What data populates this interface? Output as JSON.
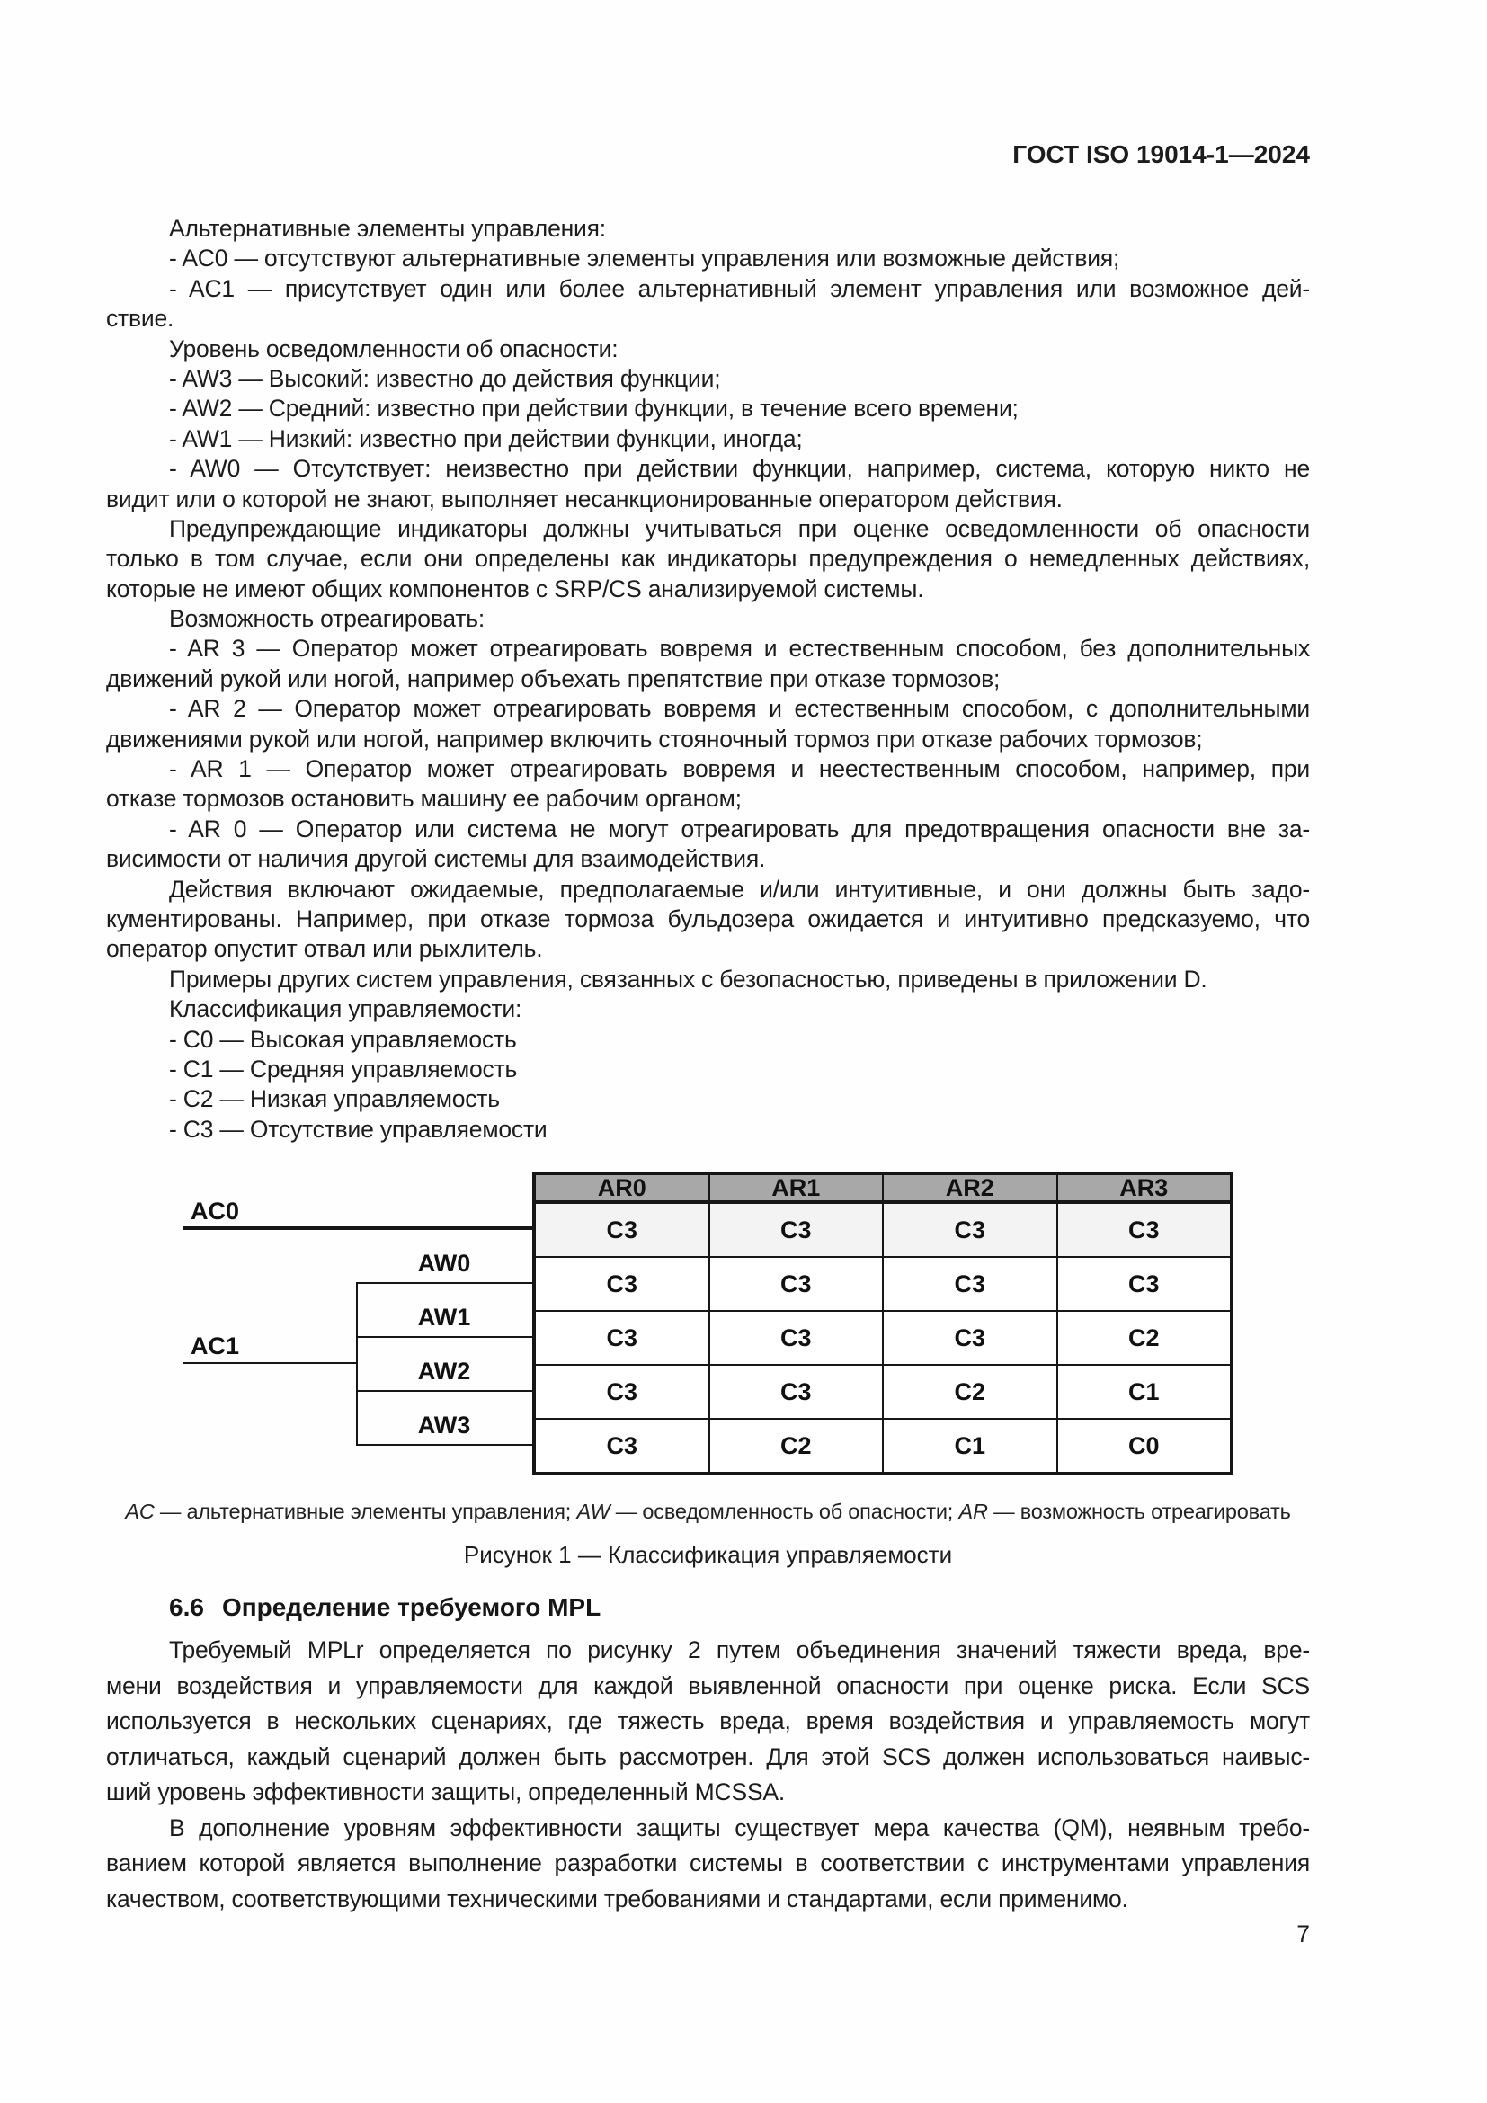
{
  "page": {
    "header_title": "ГОСТ ISO 19014-1—2024",
    "number": "7"
  },
  "body_top": {
    "lines": [
      {
        "text": "Альтернативные элементы управления:",
        "indent": true
      },
      {
        "text": "- AC0 — отсутствуют альтернативные элементы управления или возможные действия;",
        "indent": true
      },
      {
        "text": "- AC1 — присутствует один или более альтернативный элемент управления или возможное дей-",
        "indent": true,
        "justify": true
      },
      {
        "text": "ствие."
      },
      {
        "text": "Уровень осведомленности об опасности:",
        "indent": true
      },
      {
        "text": "- AW3 — Высокий: известно до действия функции;",
        "indent": true
      },
      {
        "text": "- AW2 — Средний: известно при действии функции, в течение всего времени;",
        "indent": true
      },
      {
        "text": "- AW1 — Низкий: известно при действии функции, иногда;",
        "indent": true
      },
      {
        "text": "- AW0 — Отсутствует: неизвестно при действии функции, например, система, которую никто не",
        "indent": true,
        "justify": true
      },
      {
        "text": "видит или о которой не знают, выполняет несанкционированные оператором действия."
      },
      {
        "text": "Предупреждающие индикаторы должны учитываться при оценке осведомленности об опасности",
        "indent": true,
        "justify": true
      },
      {
        "text": "только в том случае, если они определены как индикаторы предупреждения о немедленных действиях,",
        "justify": true
      },
      {
        "text": "которые не имеют общих компонентов с SRP/CS анализируемой системы."
      },
      {
        "text": "Возможность отреагировать:",
        "indent": true
      },
      {
        "text": "- AR 3 — Оператор может отреагировать вовремя и естественным способом, без дополнительных",
        "indent": true,
        "justify": true
      },
      {
        "text": "движений рукой или ногой, например объехать препятствие при отказе тормозов;"
      },
      {
        "text": "- AR 2 — Оператор может отреагировать вовремя и естественным способом, с дополнительными",
        "indent": true,
        "justify": true
      },
      {
        "text": "движениями рукой или ногой, например включить стояночный тормоз при отказе рабочих тормозов;"
      },
      {
        "text": "- AR 1 — Оператор может отреагировать вовремя и неестественным способом, например, при",
        "indent": true,
        "justify": true
      },
      {
        "text": "отказе тормозов остановить машину ее рабочим органом;"
      },
      {
        "text": "- AR 0 — Оператор или система не могут отреагировать для предотвращения опасности вне за-",
        "indent": true,
        "justify": true
      },
      {
        "text": "висимости от наличия другой системы для взаимодействия."
      },
      {
        "text": "Действия включают ожидаемые, предполагаемые и/или интуитивные, и они должны быть задо-",
        "indent": true,
        "justify": true
      },
      {
        "text": "кументированы. Например, при отказе тормоза бульдозера ожидается и интуитивно предсказуемо, что",
        "justify": true
      },
      {
        "text": "оператор опустит отвал или рыхлитель."
      },
      {
        "text": "Примеры других систем управления, связанных с безопасностью, приведены в приложении D.",
        "indent": true
      },
      {
        "text": "Классификация управляемости:",
        "indent": true
      },
      {
        "text": "- C0 — Высокая управляемость",
        "indent": true
      },
      {
        "text": "- C1 — Средняя управляемость",
        "indent": true
      },
      {
        "text": "- C2 — Низкая управляемость",
        "indent": true
      },
      {
        "text": "- C3 — Отсутствие управляемости",
        "indent": true
      }
    ]
  },
  "figure": {
    "tree": {
      "ac0": "AC0",
      "ac1": "AC1",
      "aw": [
        "AW0",
        "AW1",
        "AW2",
        "AW3"
      ]
    },
    "col_headers": [
      "AR0",
      "AR1",
      "AR2",
      "AR3"
    ],
    "matrix": [
      [
        "C3",
        "C3",
        "C3",
        "C3"
      ],
      [
        "C3",
        "C3",
        "C3",
        "C3"
      ],
      [
        "C3",
        "C3",
        "C3",
        "C2"
      ],
      [
        "C3",
        "C3",
        "C2",
        "C1"
      ],
      [
        "C3",
        "C2",
        "C1",
        "C0"
      ]
    ],
    "caption_parts": [
      {
        "term": "AC",
        "desc": " — альтернативные элементы управления; "
      },
      {
        "term": "AW",
        "desc": " — осведомленность об опасности; "
      },
      {
        "term": "AR",
        "desc": " — возможность отреагировать"
      }
    ],
    "title": "Рисунок 1 — Классификация управляемости"
  },
  "section": {
    "heading_num": "6.6",
    "heading_text": "Определение требуемого MPL",
    "lines": [
      {
        "text": "Требуемый MPLr определяется по рисунку 2 путем объединения значений тяжести вреда, вре-",
        "indent": true,
        "justify": true
      },
      {
        "text": "мени воздействия и управляемости для каждой выявленной опасности при оценке риска. Если SCS",
        "justify": true
      },
      {
        "text": "используется в нескольких сценариях, где тяжесть вреда, время воздействия и управляемость могут",
        "justify": true
      },
      {
        "text": "отличаться, каждый сценарий должен быть рассмотрен. Для этой SCS должен использоваться наивыс-",
        "justify": true
      },
      {
        "text": "ший уровень эффективности защиты, определенный MCSSA."
      },
      {
        "text": "В дополнение уровням эффективности защиты существует мера качества (QM), неявным требо-",
        "indent": true,
        "justify": true
      },
      {
        "text": "ванием которой является выполнение разработки системы в соответствии с инструментами управления",
        "justify": true
      },
      {
        "text": "качеством, соответствующими техническими требованиями и стандартами, если применимо."
      }
    ]
  },
  "colors": {
    "table_header_bg": "#a8a8a8",
    "table_row1_bg": "#f3f3f3",
    "border": "#161616",
    "text": "#1c1c1c"
  }
}
